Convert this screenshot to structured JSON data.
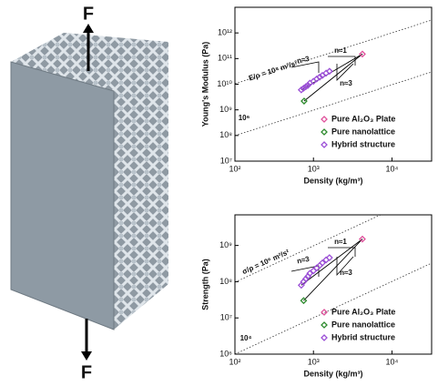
{
  "figure": {
    "top_label": "F",
    "bottom_label": "F"
  },
  "chart_data": [
    {
      "type": "scatter",
      "xscale": "log",
      "yscale": "log",
      "xlabel": "Density (kg/m³)",
      "ylabel": "Young's Modulus (Pa)",
      "xlim": [
        100,
        32000
      ],
      "ylim": [
        10000000.0,
        10000000000000.0
      ],
      "xticks": [
        {
          "value": 100,
          "label": "10²"
        },
        {
          "value": 1000,
          "label": "10³"
        },
        {
          "value": 10000,
          "label": "10⁴"
        }
      ],
      "yticks": [
        {
          "value": 10000000.0,
          "label": "10⁷"
        },
        {
          "value": 100000000.0,
          "label": "10⁸"
        },
        {
          "value": 1000000000.0,
          "label": "10⁹"
        },
        {
          "value": 10000000000.0,
          "label": "10¹⁰"
        },
        {
          "value": 100000000000.0,
          "label": "10¹¹"
        },
        {
          "value": 1000000000000.0,
          "label": "10¹²"
        }
      ],
      "legend": "lower right",
      "series": [
        {
          "name": "Pure Al₂O₃ Plate",
          "color": "#e0529c",
          "x": [
            4200
          ],
          "values": [
            150000000000.0
          ]
        },
        {
          "name": "Pure nanolattice",
          "color": "#2e8b2e",
          "x": [
            760
          ],
          "values": [
            2200000000.0
          ]
        },
        {
          "name": "Hybrid structure",
          "color": "#9b4fd6",
          "x": [
            700,
            750,
            800,
            850,
            900,
            1000,
            1100,
            1200,
            1300,
            1450,
            1600
          ],
          "values": [
            6000000000.0,
            7000000000.0,
            8000000000.0,
            9000000000.0,
            11000000000.0,
            13000000000.0,
            16000000000.0,
            19000000000.0,
            22000000000.0,
            27000000000.0,
            32000000000.0
          ]
        }
      ],
      "annotations": [
        "E/ρ = 10⁸ m²/s²",
        "10⁶",
        "n≈3",
        "n≈1",
        "n≈3"
      ]
    },
    {
      "type": "scatter",
      "xscale": "log",
      "yscale": "log",
      "xlabel": "Density (kg/m³)",
      "ylabel": "Strength (Pa)",
      "xlim": [
        100,
        32000
      ],
      "ylim": [
        1000000.0,
        7000000000.0
      ],
      "xticks": [
        {
          "value": 100,
          "label": "10²"
        },
        {
          "value": 1000,
          "label": "10³"
        },
        {
          "value": 10000,
          "label": "10⁴"
        }
      ],
      "yticks": [
        {
          "value": 1000000.0,
          "label": "10⁶"
        },
        {
          "value": 10000000.0,
          "label": "10⁷"
        },
        {
          "value": 100000000.0,
          "label": "10⁸"
        },
        {
          "value": 1000000000.0,
          "label": "10⁹"
        }
      ],
      "legend": "lower right",
      "series": [
        {
          "name": "Pure Al₂O₃ Plate",
          "color": "#e0529c",
          "x": [
            4200
          ],
          "values": [
            1500000000.0
          ]
        },
        {
          "name": "Pure nanolattice",
          "color": "#2e8b2e",
          "x": [
            750
          ],
          "values": [
            30000000.0
          ]
        },
        {
          "name": "Hybrid structure",
          "color": "#9b4fd6",
          "x": [
            700,
            750,
            800,
            850,
            900,
            1000,
            1100,
            1200,
            1300,
            1450,
            1600
          ],
          "values": [
            80000000.0,
            100000000.0,
            120000000.0,
            140000000.0,
            170000000.0,
            200000000.0,
            240000000.0,
            280000000.0,
            330000000.0,
            400000000.0,
            460000000.0
          ]
        }
      ],
      "annotations": [
        "σ/ρ = 10⁶ m²/s²",
        "10⁴",
        "n≈3",
        "n≈1",
        "n≈3"
      ]
    }
  ]
}
